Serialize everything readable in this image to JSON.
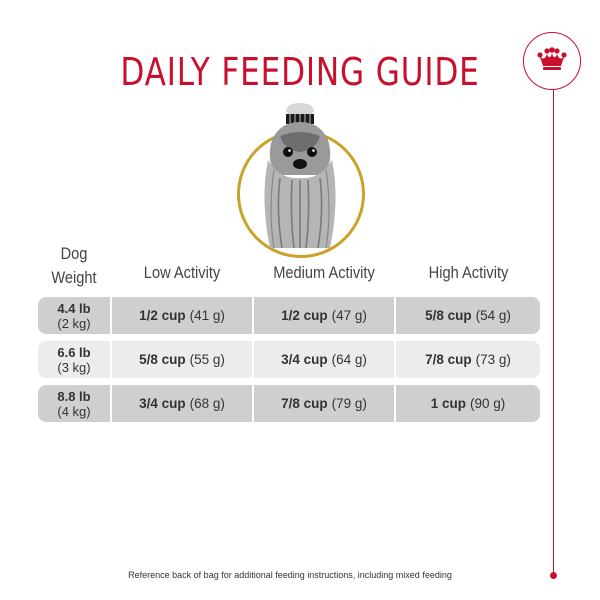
{
  "title": "DAILY FEEDING GUIDE",
  "brand": {
    "icon": "crown-icon",
    "accent": "#c8102e",
    "ring": "#c9a227"
  },
  "portrait": {
    "icon": "yorkshire-terrier-dog-icon"
  },
  "headers": {
    "weight_line1": "Dog",
    "weight_line2": "Weight",
    "low": "Low Activity",
    "medium": "Medium Activity",
    "high": "High Activity"
  },
  "rows": [
    {
      "weight_lb": "4.4 lb",
      "weight_kg": "(2 kg)",
      "low_cup": "1/2 cup",
      "low_g": "(41 g)",
      "med_cup": "1/2 cup",
      "med_g": "(47 g)",
      "high_cup": "5/8 cup",
      "high_g": "(54 g)"
    },
    {
      "weight_lb": "6.6 lb",
      "weight_kg": "(3 kg)",
      "low_cup": "5/8 cup",
      "low_g": "(55 g)",
      "med_cup": "3/4 cup",
      "med_g": "(64 g)",
      "high_cup": "7/8 cup",
      "high_g": "(73 g)"
    },
    {
      "weight_lb": "8.8 lb",
      "weight_kg": "(4 kg)",
      "low_cup": "3/4 cup",
      "low_g": "(68 g)",
      "med_cup": "7/8 cup",
      "med_g": "(79 g)",
      "high_cup": "1 cup",
      "high_g": "(90 g)"
    }
  ],
  "footnote": "Reference back of bag for additional feeding instructions, including mixed feeding"
}
